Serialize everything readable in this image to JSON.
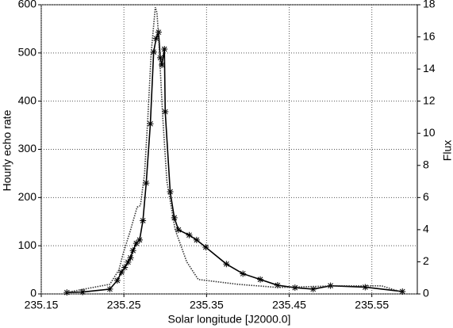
{
  "chart_data": {
    "type": "line",
    "xlabel": "Solar longitude [J2000.0]",
    "ylabel": "Hourly echo rate",
    "y2label": "Flux",
    "xlim": [
      235.15,
      235.605
    ],
    "xticks": [
      235.15,
      235.25,
      235.35,
      235.45,
      235.55
    ],
    "ylim": [
      0,
      600
    ],
    "yticks": [
      0,
      100,
      200,
      300,
      400,
      500,
      600
    ],
    "y2lim": [
      0,
      18
    ],
    "y2ticks": [
      0,
      2,
      4,
      6,
      8,
      10,
      12,
      14,
      16,
      18
    ],
    "grid": true,
    "series": [
      {
        "color": "#000000",
        "marker": "asterisk",
        "dash": "solid",
        "x": [
          235.181,
          235.2,
          235.233,
          235.242,
          235.247,
          235.251,
          235.255,
          235.258,
          235.261,
          235.265,
          235.269,
          235.273,
          235.277,
          235.282,
          235.286,
          235.289,
          235.292,
          235.294,
          235.296,
          235.299,
          235.3,
          235.306,
          235.311,
          235.316,
          235.329,
          235.338,
          235.349,
          235.374,
          235.394,
          235.415,
          235.436,
          235.457,
          235.479,
          235.5,
          235.542,
          235.587
        ],
        "values": [
          3,
          4,
          10,
          28,
          45,
          55,
          66,
          75,
          90,
          105,
          112,
          152,
          230,
          353,
          502,
          530,
          543,
          490,
          475,
          508,
          378,
          212,
          158,
          133,
          122,
          112,
          97,
          62,
          42,
          30,
          18,
          13,
          10,
          17,
          14,
          5
        ]
      },
      {
        "color": "#333333",
        "marker": "none",
        "dash": "dotted",
        "axis": "y2",
        "x": [
          235.181,
          235.233,
          235.244,
          235.249,
          235.257,
          235.266,
          235.27,
          235.275,
          235.279,
          235.283,
          235.288,
          235.29,
          235.292,
          235.297,
          235.302,
          235.312,
          235.326,
          235.34,
          235.388,
          235.437,
          235.504,
          235.562,
          235.587
        ],
        "values": [
          0.1,
          0.6,
          1.5,
          2.5,
          3.8,
          5.4,
          5.5,
          7.5,
          11,
          15,
          17.85,
          17.5,
          16,
          11,
          7,
          4,
          2,
          0.9,
          0.6,
          0.4,
          0.5,
          0.5,
          0.1
        ]
      }
    ]
  }
}
